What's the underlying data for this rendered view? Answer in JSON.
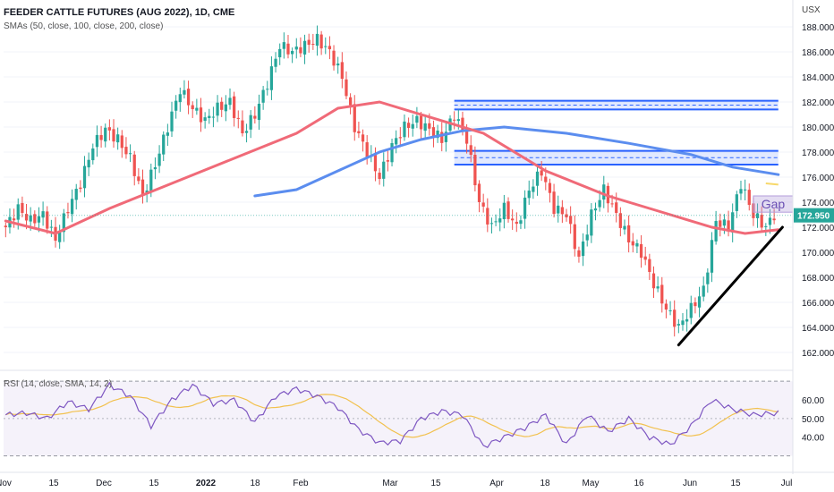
{
  "header": {
    "title": "FEEDER CATTLE FUTURES (AUG 2022), 1D, CME",
    "indicators": "SMAs (50, close, 100, close, 200, close)",
    "rsi_label": "RSI (14, close, SMA, 14, 2)",
    "currency": "USX"
  },
  "colors": {
    "up": "#26a69a",
    "down": "#ef5350",
    "sma_fast": "#f06a78",
    "sma_slow": "#5b8def",
    "zone": "#2962ff",
    "trend": "#000000",
    "gap": "#b39ddb",
    "rsi": "#7e57c2",
    "rsi_ma": "#f2c14e"
  },
  "chart_data": {
    "type": "candlestick",
    "title": "FEEDER CATTLE FUTURES (AUG 2022), 1D, CME",
    "ylim": [
      161,
      189
    ],
    "y_ticks": [
      162,
      164,
      166,
      168,
      170,
      172,
      174,
      176,
      178,
      180,
      182,
      184,
      186,
      188
    ],
    "y_tick_labels": [
      "162.000",
      "164.000",
      "166.000",
      "168.000",
      "170.000",
      "172.000",
      "174.000",
      "176.000",
      "178.000",
      "180.000",
      "182.000",
      "184.000",
      "186.000",
      "188.000"
    ],
    "x_ticks": [
      "Nov",
      "15",
      "Dec",
      "15",
      "2022",
      "18",
      "Feb",
      "Mar",
      "15",
      "Apr",
      "18",
      "May",
      "16",
      "Jun",
      "15",
      "Jul"
    ],
    "last_price": 172.95,
    "last_price_label": "172.950",
    "anchors": [
      [
        0,
        172.0
      ],
      [
        3,
        173.5
      ],
      [
        6,
        172.5
      ],
      [
        9,
        173.0
      ],
      [
        12,
        171.0
      ],
      [
        15,
        173.5
      ],
      [
        18,
        175.5
      ],
      [
        21,
        178.5
      ],
      [
        24,
        179.8
      ],
      [
        27,
        179.0
      ],
      [
        30,
        177.5
      ],
      [
        33,
        174.5
      ],
      [
        36,
        177.0
      ],
      [
        39,
        180.0
      ],
      [
        42,
        183.0
      ],
      [
        45,
        181.5
      ],
      [
        48,
        180.5
      ],
      [
        51,
        181.5
      ],
      [
        54,
        182.0
      ],
      [
        57,
        179.5
      ],
      [
        60,
        181.0
      ],
      [
        63,
        183.5
      ],
      [
        66,
        186.5
      ],
      [
        69,
        186.0
      ],
      [
        72,
        186.5
      ],
      [
        75,
        187.0
      ],
      [
        78,
        186.0
      ],
      [
        81,
        184.0
      ],
      [
        84,
        180.0
      ],
      [
        87,
        178.0
      ],
      [
        90,
        176.0
      ],
      [
        93,
        178.5
      ],
      [
        96,
        180.0
      ],
      [
        99,
        180.5
      ],
      [
        102,
        179.8
      ],
      [
        105,
        179.0
      ],
      [
        108,
        181.0
      ],
      [
        111,
        179.0
      ],
      [
        114,
        174.0
      ],
      [
        117,
        172.0
      ],
      [
        120,
        173.5
      ],
      [
        123,
        172.0
      ],
      [
        126,
        175.0
      ],
      [
        129,
        176.5
      ],
      [
        132,
        173.5
      ],
      [
        135,
        173.0
      ],
      [
        138,
        169.5
      ],
      [
        141,
        173.0
      ],
      [
        144,
        175.0
      ],
      [
        147,
        173.0
      ],
      [
        150,
        171.0
      ],
      [
        153,
        170.0
      ],
      [
        156,
        167.5
      ],
      [
        159,
        165.5
      ],
      [
        162,
        164.0
      ],
      [
        165,
        165.5
      ],
      [
        168,
        167.0
      ],
      [
        171,
        172.5
      ],
      [
        174,
        172.0
      ],
      [
        177,
        175.5
      ],
      [
        180,
        173.0
      ],
      [
        183,
        172.0
      ],
      [
        185,
        173.0
      ]
    ],
    "sma_fast": [
      [
        0,
        172.5
      ],
      [
        12,
        171.5
      ],
      [
        25,
        173.5
      ],
      [
        40,
        175.5
      ],
      [
        55,
        177.5
      ],
      [
        70,
        179.5
      ],
      [
        80,
        181.5
      ],
      [
        90,
        182.0
      ],
      [
        100,
        181.0
      ],
      [
        115,
        179.5
      ],
      [
        130,
        176.5
      ],
      [
        145,
        174.5
      ],
      [
        160,
        173.0
      ],
      [
        170,
        172.0
      ],
      [
        178,
        171.5
      ],
      [
        186,
        171.8
      ]
    ],
    "sma_slow": [
      [
        60,
        174.5
      ],
      [
        70,
        175.0
      ],
      [
        80,
        176.5
      ],
      [
        90,
        178.0
      ],
      [
        100,
        179.0
      ],
      [
        110,
        179.7
      ],
      [
        120,
        180.0
      ],
      [
        135,
        179.5
      ],
      [
        150,
        178.7
      ],
      [
        165,
        177.8
      ],
      [
        175,
        176.8
      ],
      [
        186,
        176.2
      ]
    ],
    "sma_extra": [
      [
        183,
        175.5
      ],
      [
        186,
        175.4
      ]
    ],
    "zones": [
      [
        [
          108,
          186
        ],
        [
          181.4,
          182.1
        ]
      ],
      [
        [
          108,
          186
        ],
        [
          177.0,
          178.1
        ]
      ]
    ],
    "trendline": [
      [
        162,
        162.6
      ],
      [
        187,
        172.0
      ]
    ],
    "gap": {
      "label": "Gap",
      "x": [
        180,
        190
      ],
      "y": [
        173.2,
        174.5
      ]
    },
    "rsi_ylim": [
      25,
      72
    ],
    "rsi_ticks": [
      40,
      50,
      60
    ],
    "rsi_tick_labels": [
      "40.00",
      "50.00",
      "60.00"
    ],
    "rsi_bands": [
      30,
      70
    ],
    "rsi_anchors": [
      [
        0,
        52
      ],
      [
        5,
        53
      ],
      [
        10,
        50
      ],
      [
        15,
        59
      ],
      [
        20,
        55
      ],
      [
        25,
        68
      ],
      [
        30,
        62
      ],
      [
        35,
        46
      ],
      [
        40,
        60
      ],
      [
        45,
        68
      ],
      [
        50,
        58
      ],
      [
        55,
        60
      ],
      [
        60,
        48
      ],
      [
        65,
        62
      ],
      [
        70,
        66
      ],
      [
        75,
        62
      ],
      [
        80,
        56
      ],
      [
        85,
        44
      ],
      [
        90,
        37
      ],
      [
        95,
        38
      ],
      [
        100,
        50
      ],
      [
        105,
        54
      ],
      [
        110,
        52
      ],
      [
        115,
        35
      ],
      [
        120,
        40
      ],
      [
        125,
        45
      ],
      [
        130,
        52
      ],
      [
        135,
        36
      ],
      [
        140,
        52
      ],
      [
        145,
        43
      ],
      [
        150,
        50
      ],
      [
        155,
        40
      ],
      [
        160,
        36
      ],
      [
        165,
        46
      ],
      [
        170,
        60
      ],
      [
        175,
        55
      ],
      [
        180,
        52
      ],
      [
        186,
        53
      ]
    ]
  }
}
